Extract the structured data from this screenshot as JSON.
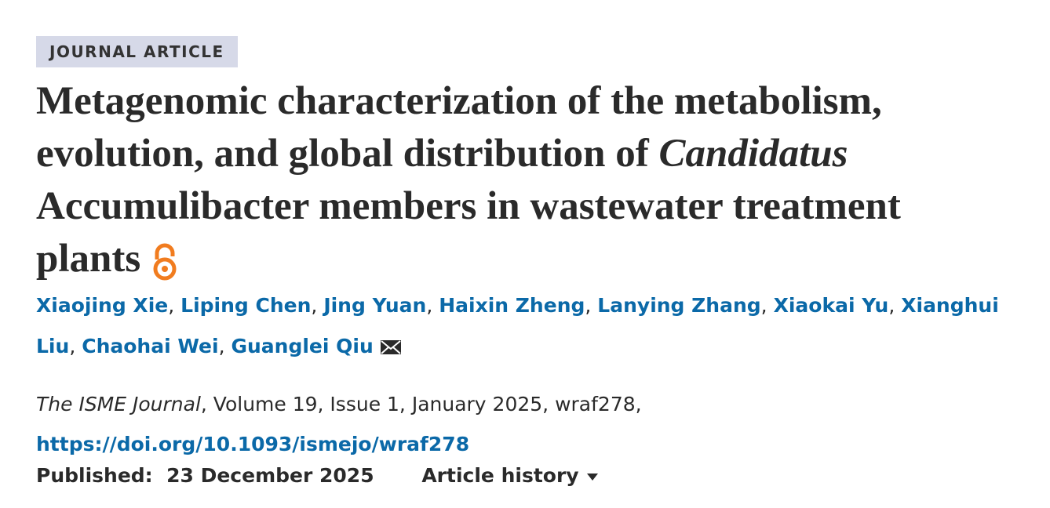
{
  "badge": "JOURNAL ARTICLE",
  "title": {
    "line1": "Metagenomic characterization of the metabolism,",
    "line2": "evolution, and global distribution of",
    "line2_italic": "Candidatus",
    "line3": "Accumulibacter members in wastewater treatment",
    "line4": "plants"
  },
  "authors": [
    "Xiaojing Xie",
    "Liping Chen",
    "Jing Yuan",
    "Haixin Zheng",
    "Lanying Zhang",
    "Xiaokai Yu",
    "Xianghui Liu",
    "Chaohai Wei",
    "Guanglei Qiu"
  ],
  "author_separator": ",",
  "citation": {
    "journal": "The ISME Journal",
    "details": ", Volume 19, Issue 1, January 2025, wraf278,",
    "doi": "https://doi.org/10.1093/ismejo/wraf278"
  },
  "published": {
    "label": "Published:",
    "date": "23 December 2025"
  },
  "article_history": "Article history"
}
